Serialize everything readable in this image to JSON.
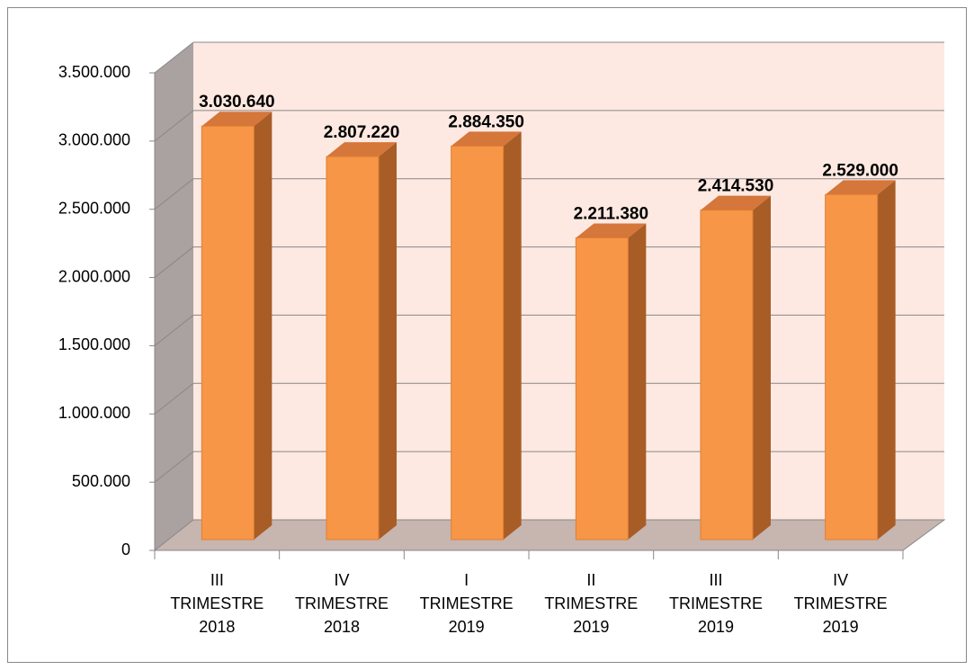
{
  "chart_data": {
    "type": "bar",
    "categories": [
      "III TRIMESTRE 2018",
      "IV TRIMESTRE 2018",
      "I TRIMESTRE 2019",
      "II TRIMESTRE 2019",
      "III TRIMESTRE 2019",
      "IV TRIMESTRE 2019"
    ],
    "values": [
      3030640,
      2807220,
      2884350,
      2211380,
      2414530,
      2529000
    ],
    "value_labels": [
      "3.030.640",
      "2.807.220",
      "2.884.350",
      "2.211.380",
      "2.414.530",
      "2.529.000"
    ],
    "color": "#f79646",
    "ylim": [
      0,
      3500000
    ],
    "yticks": [
      0,
      {
        "value": 500000,
        "label": "500.000"
      },
      {
        "value": 1000000,
        "label": "1.000.000"
      },
      {
        "value": 1500000,
        "label": "1.500.000"
      },
      {
        "value": 2000000,
        "label": "2.000.000"
      },
      {
        "value": 2500000,
        "label": "2.500.000"
      },
      {
        "value": 3000000,
        "label": "3.000.000"
      },
      {
        "value": 3500000,
        "label": "3.500.000"
      }
    ],
    "grid": true
  }
}
